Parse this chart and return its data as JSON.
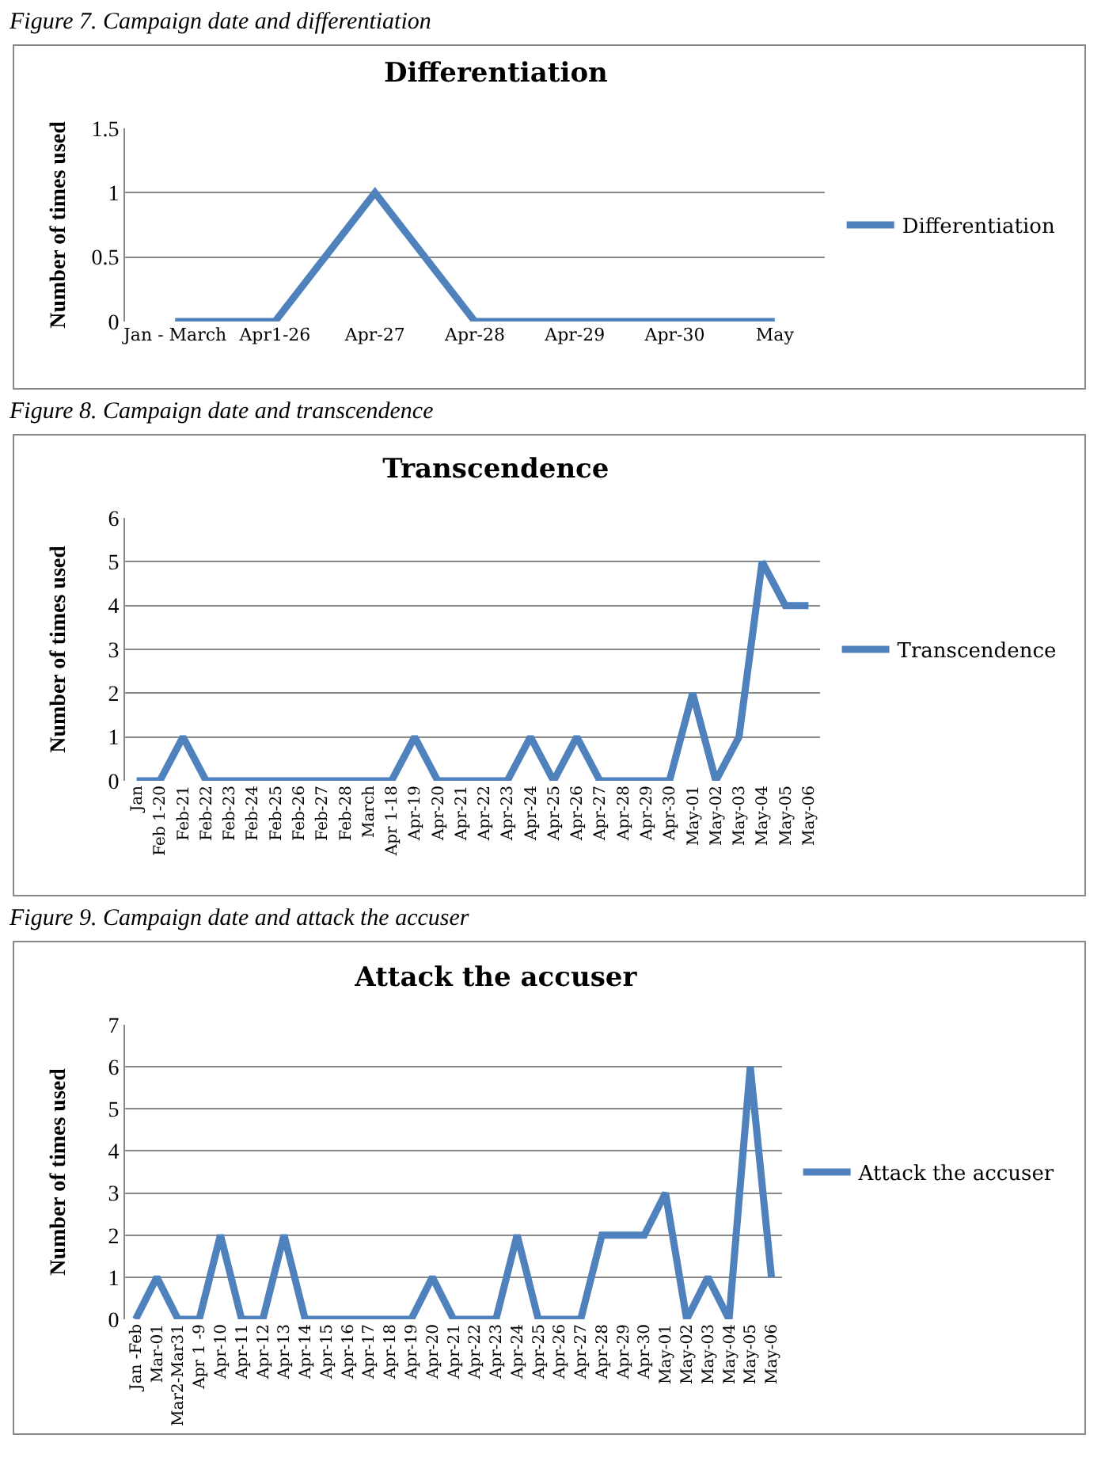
{
  "chart_data": [
    {
      "type": "line",
      "title": "Differentiation",
      "ylabel": "Number of times used",
      "annotations": [
        "Figure 7. Campaign date and differentiation"
      ],
      "categories": [
        "Jan - March",
        "Apr1-26",
        "Apr-27",
        "Apr-28",
        "Apr-29",
        "Apr-30",
        "May"
      ],
      "series": [
        {
          "name": "Differentiation",
          "color": "#4f81bd",
          "values": [
            0,
            0,
            1,
            0,
            0,
            0,
            0
          ]
        }
      ],
      "ylim": [
        0,
        1.5
      ],
      "yticks": [
        0,
        0.5,
        1,
        1.5
      ],
      "grid": "y",
      "legend": "right",
      "marker": "none",
      "line_style": "solid"
    },
    {
      "type": "line",
      "title": "Transcendence",
      "ylabel": "Number of times used",
      "annotations": [
        "Figure 8. Campaign date and transcendence"
      ],
      "categories": [
        "Jan",
        "Feb 1-20",
        "Feb-21",
        "Feb-22",
        "Feb-23",
        "Feb-24",
        "Feb-25",
        "Feb-26",
        "Feb-27",
        "Feb-28",
        "March",
        "Apr 1-18",
        "Apr-19",
        "Apr-20",
        "Apr-21",
        "Apr-22",
        "Apr-23",
        "Apr-24",
        "Apr-25",
        "Apr-26",
        "Apr-27",
        "Apr-28",
        "Apr-29",
        "Apr-30",
        "May-01",
        "May-02",
        "May-03",
        "May-04",
        "May-05",
        "May-06"
      ],
      "series": [
        {
          "name": "Transcendence",
          "color": "#4f81bd",
          "values": [
            0,
            0,
            1,
            0,
            0,
            0,
            0,
            0,
            0,
            0,
            0,
            0,
            1,
            0,
            0,
            0,
            0,
            1,
            0,
            1,
            0,
            0,
            0,
            0,
            2,
            0,
            1,
            5,
            4,
            4
          ]
        }
      ],
      "ylim": [
        0,
        6
      ],
      "yticks": [
        0,
        1,
        2,
        3,
        4,
        5,
        6
      ],
      "grid": "y",
      "legend": "right",
      "marker": "none",
      "line_style": "solid"
    },
    {
      "type": "line",
      "title": "Attack the accuser",
      "ylabel": "Number of times used",
      "annotations": [
        "Figure 9. Campaign date and attack the accuser"
      ],
      "categories": [
        "Jan -Feb",
        "Mar-01",
        "Mar2-Mar31",
        "Apr 1 -9",
        "Apr-10",
        "Apr-11",
        "Apr-12",
        "Apr-13",
        "Apr-14",
        "Apr-15",
        "Apr-16",
        "Apr-17",
        "Apr-18",
        "Apr-19",
        "Apr-20",
        "Apr-21",
        "Apr-22",
        "Apr-23",
        "Apr-24",
        "Apr-25",
        "Apr-26",
        "Apr-27",
        "Apr-28",
        "Apr-29",
        "Apr-30",
        "May-01",
        "May-02",
        "May-03",
        "May-04",
        "May-05",
        "May-06"
      ],
      "series": [
        {
          "name": "Attack the accuser",
          "color": "#4f81bd",
          "values": [
            0,
            1,
            0,
            0,
            2,
            0,
            0,
            2,
            0,
            0,
            0,
            0,
            0,
            0,
            1,
            0,
            0,
            0,
            2,
            0,
            0,
            0,
            2,
            2,
            2,
            3,
            0,
            1,
            0,
            6,
            1
          ]
        }
      ],
      "ylim": [
        0,
        7
      ],
      "yticks": [
        0,
        1,
        2,
        3,
        4,
        5,
        6,
        7
      ],
      "grid": "y",
      "legend": "right",
      "marker": "none",
      "line_style": "solid"
    }
  ]
}
